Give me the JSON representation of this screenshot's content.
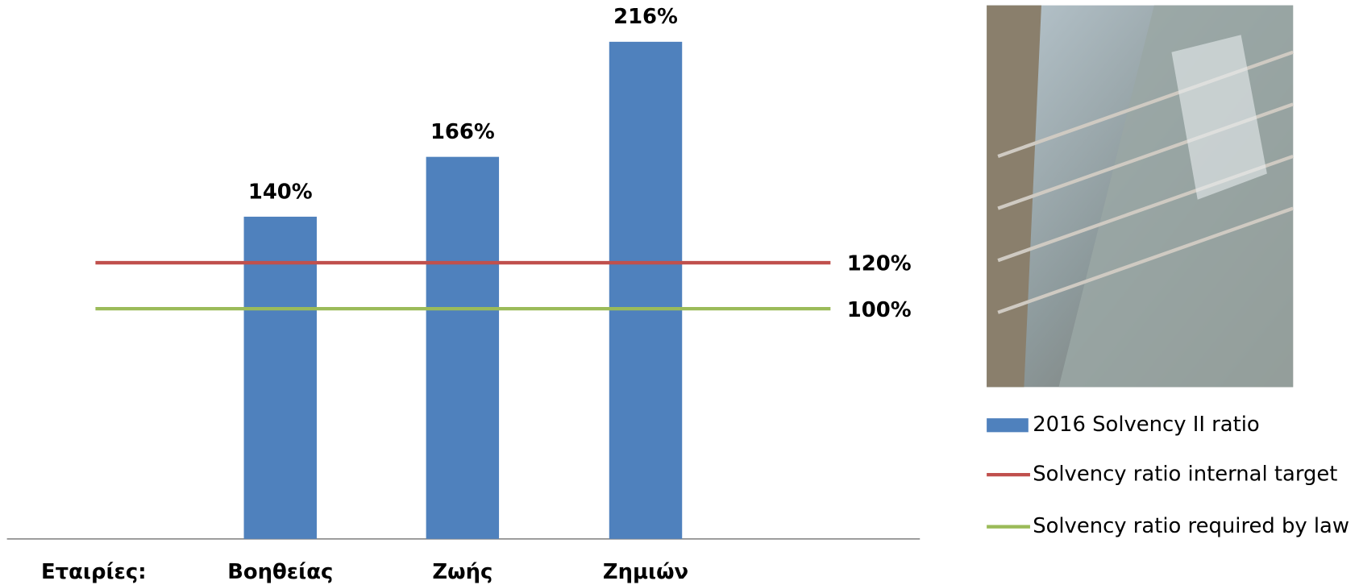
{
  "chart_data": {
    "type": "bar",
    "x_label": "Εταιρίες:",
    "categories": [
      "Βοηθείας",
      "Ζωής",
      "Ζημιών"
    ],
    "series": [
      {
        "name": "2016 Solvency II ratio",
        "color": "#4f81bd",
        "values": [
          140,
          166,
          216
        ],
        "value_labels": [
          "140%",
          "166%",
          "216%"
        ]
      }
    ],
    "reference_lines": [
      {
        "name": "Solvency ratio internal target",
        "color": "#c0504d",
        "value": 120,
        "label": "120%"
      },
      {
        "name": "Solvency ratio required by law",
        "color": "#9bbb59",
        "value": 100,
        "label": "100%"
      }
    ]
  }
}
